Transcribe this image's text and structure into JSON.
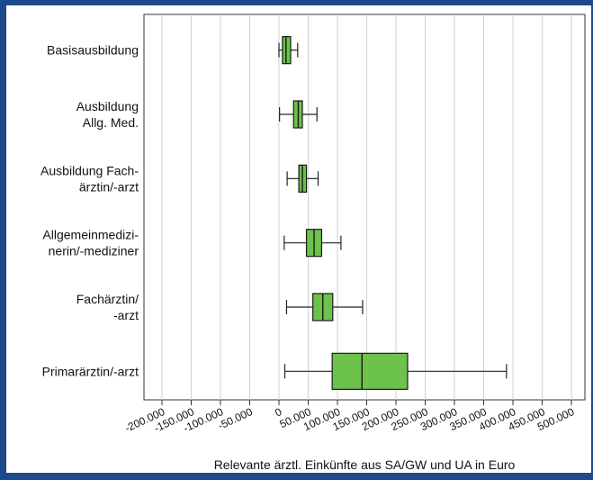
{
  "chart_data": {
    "type": "boxplot",
    "orientation": "horizontal",
    "xlabel": "Relevante ärztl. Einkünfte aus SA/GW und UA in Euro",
    "xlim": [
      -200000,
      500000
    ],
    "ticks": [
      -200000,
      -150000,
      -100000,
      -50000,
      0,
      50000,
      100000,
      150000,
      200000,
      250000,
      300000,
      350000,
      400000,
      450000,
      500000
    ],
    "tick_labels": [
      "-200.000",
      "-150.000",
      "-100.000",
      "-50.000",
      "0",
      "50.000",
      "100.000",
      "150.000",
      "200.000",
      "250.000",
      "300.000",
      "350.000",
      "400.000",
      "450.000",
      "500.000"
    ],
    "grid": true,
    "colors": {
      "box_fill": "#6cc24a",
      "box_stroke": "#1a1a1a",
      "grid": "#d2d2d2",
      "frame": "#1c4a8c"
    },
    "categories": [
      {
        "lines": [
          "Basisausbildung"
        ],
        "whisker_low": 0,
        "q1": 6000,
        "median": 12000,
        "q3": 20000,
        "whisker_high": 32000
      },
      {
        "lines": [
          "Ausbildung",
          "Allg. Med."
        ],
        "whisker_low": 1000,
        "q1": 25000,
        "median": 33000,
        "q3": 40000,
        "whisker_high": 65000
      },
      {
        "lines": [
          "Ausbildung Fach-",
          "ärztin/-arzt"
        ],
        "whisker_low": 14000,
        "q1": 34000,
        "median": 40000,
        "q3": 47000,
        "whisker_high": 67000
      },
      {
        "lines": [
          "Allgemeinmedizi-",
          "nerin/-mediziner"
        ],
        "whisker_low": 9000,
        "q1": 47000,
        "median": 60000,
        "q3": 73000,
        "whisker_high": 106000
      },
      {
        "lines": [
          "Fachärztin/",
          "-arzt"
        ],
        "whisker_low": 13000,
        "q1": 58000,
        "median": 75000,
        "q3": 92000,
        "whisker_high": 143000
      },
      {
        "lines": [
          "Primarärztin/-arzt"
        ],
        "whisker_low": 10000,
        "q1": 91000,
        "median": 142000,
        "q3": 220000,
        "whisker_high": 389000
      }
    ]
  }
}
